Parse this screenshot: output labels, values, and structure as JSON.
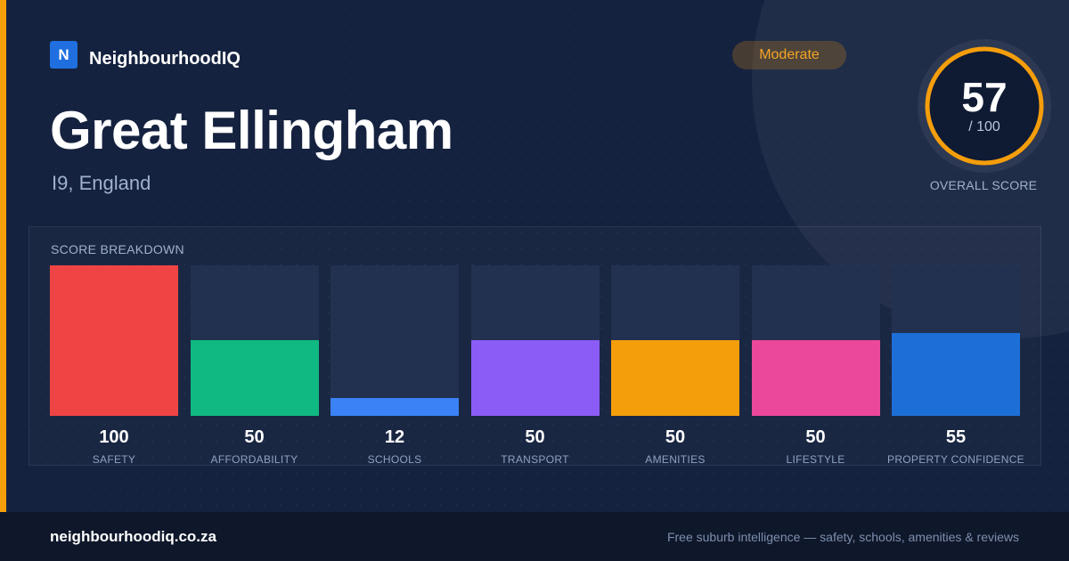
{
  "brand": {
    "logo_letter": "N",
    "name": "NeighbourhoodIQ"
  },
  "place": {
    "name": "Great Ellingham",
    "location": "I9, England"
  },
  "rating": {
    "label": "Moderate"
  },
  "score": {
    "value": "57",
    "max": "/ 100",
    "label": "OVERALL SCORE",
    "fraction": 0.57
  },
  "colors": {
    "accent": "#f59e0b",
    "ring_track": "#233150"
  },
  "breakdown": {
    "title": "SCORE BREAKDOWN",
    "items": [
      {
        "label": "SAFETY",
        "value": 100,
        "color": "#ef4444"
      },
      {
        "label": "AFFORDABILITY",
        "value": 50,
        "color": "#10b981"
      },
      {
        "label": "SCHOOLS",
        "value": 12,
        "color": "#3b82f6"
      },
      {
        "label": "TRANSPORT",
        "value": 50,
        "color": "#8b5cf6"
      },
      {
        "label": "AMENITIES",
        "value": 50,
        "color": "#f59e0b"
      },
      {
        "label": "LIFESTYLE",
        "value": 50,
        "color": "#ec4899"
      },
      {
        "label": "PROPERTY CONFIDENCE",
        "value": 55,
        "color": "#1d6fd8"
      }
    ]
  },
  "footer": {
    "domain": "neighbourhoodiq.co.za",
    "tagline": "Free suburb intelligence — safety, schools, amenities & reviews"
  }
}
